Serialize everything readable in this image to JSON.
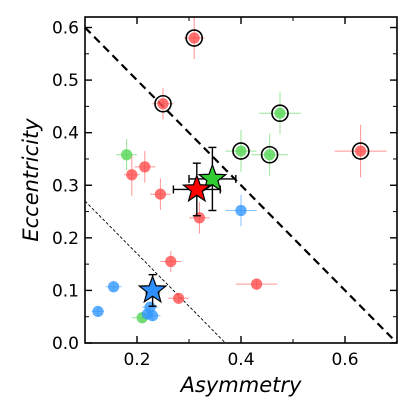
{
  "chart_data": {
    "type": "scatter",
    "xlabel": "Asymmetry",
    "ylabel": "Eccentricity",
    "xlim": [
      0.1,
      0.7
    ],
    "ylim": [
      0.0,
      0.62
    ],
    "x_ticks": [
      0.2,
      0.4,
      0.6
    ],
    "x_tick_labels": [
      "0.2",
      "0.4",
      "0.6"
    ],
    "y_ticks": [
      0.0,
      0.1,
      0.2,
      0.3,
      0.4,
      0.5,
      0.6
    ],
    "y_tick_labels": [
      "0.0",
      "0.1",
      "0.2",
      "0.3",
      "0.4",
      "0.5",
      "0.6"
    ],
    "grid": false,
    "colors": {
      "red": "#ff4d4d",
      "green": "#55d655",
      "blue": "#3399ff",
      "red_star": "#ff0000",
      "green_star": "#33cc33",
      "blue_star": "#2e8fff"
    },
    "series": [
      {
        "color": "red",
        "points": [
          {
            "x": 0.31,
            "y": 0.58,
            "xerr": 0.02,
            "yerr": 0.04,
            "circled": true
          },
          {
            "x": 0.25,
            "y": 0.455,
            "xerr": 0.02,
            "yerr": 0.03,
            "circled": true
          },
          {
            "x": 0.63,
            "y": 0.365,
            "xerr": 0.05,
            "yerr": 0.05,
            "circled": true
          },
          {
            "x": 0.19,
            "y": 0.32,
            "xerr": 0.015,
            "yerr": 0.04
          },
          {
            "x": 0.215,
            "y": 0.335,
            "xerr": 0.02,
            "yerr": 0.03
          },
          {
            "x": 0.245,
            "y": 0.283,
            "xerr": 0.02,
            "yerr": 0.03
          },
          {
            "x": 0.32,
            "y": 0.238,
            "xerr": 0.02,
            "yerr": 0.03
          },
          {
            "x": 0.265,
            "y": 0.155,
            "xerr": 0.02,
            "yerr": 0.02
          },
          {
            "x": 0.28,
            "y": 0.085,
            "xerr": 0.02,
            "yerr": 0.01
          },
          {
            "x": 0.43,
            "y": 0.112,
            "xerr": 0.04,
            "yerr": 0.01
          }
        ]
      },
      {
        "color": "green",
        "points": [
          {
            "x": 0.475,
            "y": 0.437,
            "xerr": 0.04,
            "yerr": 0.04,
            "circled": true
          },
          {
            "x": 0.4,
            "y": 0.365,
            "xerr": 0.03,
            "yerr": 0.04,
            "circled": true
          },
          {
            "x": 0.455,
            "y": 0.358,
            "xerr": 0.035,
            "yerr": 0.04,
            "circled": true
          },
          {
            "x": 0.18,
            "y": 0.358,
            "xerr": 0.02,
            "yerr": 0.03
          },
          {
            "x": 0.21,
            "y": 0.048,
            "xerr": 0.02,
            "yerr": 0.01
          }
        ]
      },
      {
        "color": "blue",
        "points": [
          {
            "x": 0.4,
            "y": 0.252,
            "xerr": 0.03,
            "yerr": 0.03
          },
          {
            "x": 0.155,
            "y": 0.107,
            "xerr": 0.015,
            "yerr": 0.01
          },
          {
            "x": 0.125,
            "y": 0.06,
            "xerr": 0.012,
            "yerr": 0.01
          },
          {
            "x": 0.22,
            "y": 0.055,
            "xerr": 0.015,
            "yerr": 0.01
          },
          {
            "x": 0.23,
            "y": 0.052,
            "xerr": 0.015,
            "yerr": 0.01
          },
          {
            "x": 0.225,
            "y": 0.068,
            "xerr": 0.015,
            "yerr": 0.01
          }
        ]
      }
    ],
    "stars": [
      {
        "color": "blue_star",
        "x": 0.23,
        "y": 0.1,
        "xerr": 0.012,
        "yerr": 0.03
      },
      {
        "color": "green_star",
        "x": 0.345,
        "y": 0.312,
        "xerr": 0.045,
        "yerr": 0.06
      },
      {
        "color": "red_star",
        "x": 0.315,
        "y": 0.292,
        "xerr": 0.045,
        "yerr": 0.05
      }
    ],
    "lines": [
      {
        "style": "thick-dashed",
        "x": [
          0.1,
          0.7
        ],
        "y": [
          0.6,
          0.0
        ]
      },
      {
        "style": "thin-dashed",
        "x": [
          0.1,
          0.37
        ],
        "y": [
          0.27,
          0.0
        ]
      }
    ]
  }
}
